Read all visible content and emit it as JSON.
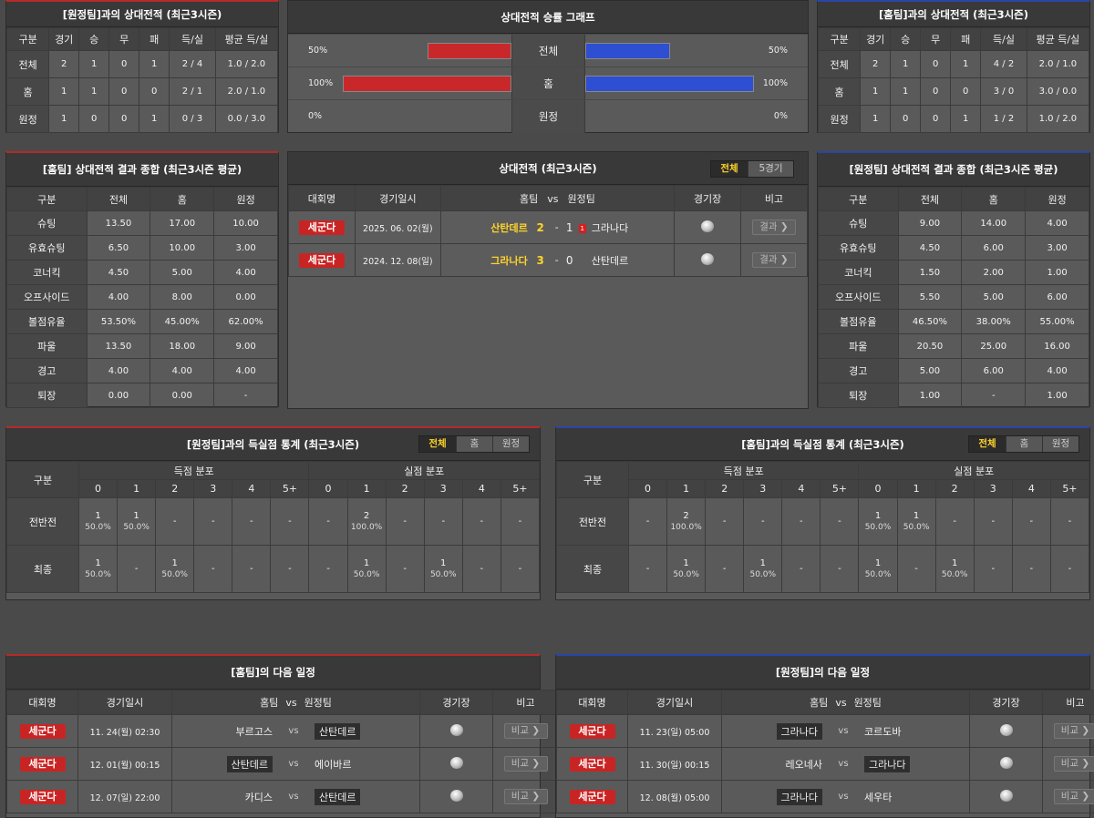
{
  "h2h_left": {
    "title": "[원정팀]과의 상대전적 (최근3시즌)",
    "headers": [
      "구분",
      "경기",
      "승",
      "무",
      "패",
      "득/실",
      "평균 득/실"
    ],
    "rows": [
      [
        "전체",
        "2",
        "1",
        "0",
        "1",
        "2 / 4",
        "1.0 / 2.0"
      ],
      [
        "홈",
        "1",
        "1",
        "0",
        "0",
        "2 / 1",
        "2.0 / 1.0"
      ],
      [
        "원정",
        "1",
        "0",
        "0",
        "1",
        "0 / 3",
        "0.0 / 3.0"
      ]
    ]
  },
  "h2h_right": {
    "title": "[홈팀]과의 상대전적 (최근3시즌)",
    "headers": [
      "구분",
      "경기",
      "승",
      "무",
      "패",
      "득/실",
      "평균 득/실"
    ],
    "rows": [
      [
        "전체",
        "2",
        "1",
        "0",
        "1",
        "4 / 2",
        "2.0 / 1.0"
      ],
      [
        "홈",
        "1",
        "1",
        "0",
        "0",
        "3 / 0",
        "3.0 / 0.0"
      ],
      [
        "원정",
        "1",
        "0",
        "0",
        "1",
        "1 / 2",
        "1.0 / 2.0"
      ]
    ]
  },
  "graph": {
    "title": "상대전적 승률 그래프",
    "rows": [
      {
        "label": "전체",
        "left": "50%",
        "right": "50%",
        "left_value": 50,
        "right_value": 50
      },
      {
        "label": "홈",
        "left": "100%",
        "right": "100%",
        "left_value": 100,
        "right_value": 100
      },
      {
        "label": "원정",
        "left": "0%",
        "right": "0%",
        "left_value": 0,
        "right_value": 0
      }
    ],
    "left_color": "#c8282a",
    "right_color": "#2e4fd1"
  },
  "stats_left": {
    "title": "[홈팀] 상대전적 결과 종합 (최근3시즌 평균)",
    "headers": [
      "구분",
      "전체",
      "홈",
      "원정"
    ],
    "rows": [
      [
        "슈팅",
        "13.50",
        "17.00",
        "10.00"
      ],
      [
        "유효슈팅",
        "6.50",
        "10.00",
        "3.00"
      ],
      [
        "코너킥",
        "4.50",
        "5.00",
        "4.00"
      ],
      [
        "오프사이드",
        "4.00",
        "8.00",
        "0.00"
      ],
      [
        "볼점유율",
        "53.50%",
        "45.00%",
        "62.00%"
      ],
      [
        "파울",
        "13.50",
        "18.00",
        "9.00"
      ],
      [
        "경고",
        "4.00",
        "4.00",
        "4.00"
      ],
      [
        "퇴장",
        "0.00",
        "0.00",
        "-"
      ]
    ]
  },
  "stats_right": {
    "title": "[원정팀] 상대전적 결과 종합 (최근3시즌 평균)",
    "headers": [
      "구분",
      "전체",
      "홈",
      "원정"
    ],
    "rows": [
      [
        "슈팅",
        "9.00",
        "14.00",
        "4.00"
      ],
      [
        "유효슈팅",
        "4.50",
        "6.00",
        "3.00"
      ],
      [
        "코너킥",
        "1.50",
        "2.00",
        "1.00"
      ],
      [
        "오프사이드",
        "5.50",
        "5.00",
        "6.00"
      ],
      [
        "볼점유율",
        "46.50%",
        "38.00%",
        "55.00%"
      ],
      [
        "파울",
        "20.50",
        "25.00",
        "16.00"
      ],
      [
        "경고",
        "5.00",
        "6.00",
        "4.00"
      ],
      [
        "퇴장",
        "1.00",
        "-",
        "1.00"
      ]
    ]
  },
  "matches": {
    "title": "상대전적 (최근3시즌)",
    "tabs": [
      "전체",
      "5경기"
    ],
    "headers": {
      "league": "대회명",
      "date": "경기일시",
      "home": "홈팀",
      "vs": "vs",
      "away": "원정팀",
      "venue": "경기장",
      "note": "비고"
    },
    "rows": [
      {
        "league": "세군다",
        "date": "2025. 06. 02(월)",
        "home": "산탄데르",
        "hs": "2",
        "as": "1",
        "card": "1",
        "away": "그라나다",
        "btn": "결과 ❯"
      },
      {
        "league": "세군다",
        "date": "2024. 12. 08(일)",
        "home": "그라나다",
        "hs": "3",
        "as": "0",
        "card": "",
        "away": "산탄데르",
        "btn": "결과 ❯"
      }
    ]
  },
  "goals_left": {
    "title": "[원정팀]과의 득실점 통계 (최근3시즌)",
    "tabs": [
      "전체",
      "홈",
      "원정"
    ],
    "group_label": "구분",
    "scored": "득점 분포",
    "conceded": "실점 분포",
    "cols": [
      "0",
      "1",
      "2",
      "3",
      "4",
      "5+"
    ],
    "rows": [
      {
        "label": "전반전",
        "cells": [
          [
            "1",
            "50.0%"
          ],
          [
            "1",
            "50.0%"
          ],
          [
            "-",
            ""
          ],
          [
            "-",
            ""
          ],
          [
            "-",
            ""
          ],
          [
            "-",
            ""
          ],
          [
            "-",
            ""
          ],
          [
            "2",
            "100.0%"
          ],
          [
            "-",
            ""
          ],
          [
            "-",
            ""
          ],
          [
            "-",
            ""
          ],
          [
            "-",
            ""
          ]
        ]
      },
      {
        "label": "최종",
        "cells": [
          [
            "1",
            "50.0%"
          ],
          [
            "-",
            ""
          ],
          [
            "1",
            "50.0%"
          ],
          [
            "-",
            ""
          ],
          [
            "-",
            ""
          ],
          [
            "-",
            ""
          ],
          [
            "-",
            ""
          ],
          [
            "1",
            "50.0%"
          ],
          [
            "-",
            ""
          ],
          [
            "1",
            "50.0%"
          ],
          [
            "-",
            ""
          ],
          [
            "-",
            ""
          ]
        ]
      }
    ]
  },
  "goals_right": {
    "title": "[홈팀]과의 득실점 통계 (최근3시즌)",
    "tabs": [
      "전체",
      "홈",
      "원정"
    ],
    "group_label": "구분",
    "scored": "득점 분포",
    "conceded": "실점 분포",
    "cols": [
      "0",
      "1",
      "2",
      "3",
      "4",
      "5+"
    ],
    "rows": [
      {
        "label": "전반전",
        "cells": [
          [
            "-",
            ""
          ],
          [
            "2",
            "100.0%"
          ],
          [
            "-",
            ""
          ],
          [
            "-",
            ""
          ],
          [
            "-",
            ""
          ],
          [
            "-",
            ""
          ],
          [
            "1",
            "50.0%"
          ],
          [
            "1",
            "50.0%"
          ],
          [
            "-",
            ""
          ],
          [
            "-",
            ""
          ],
          [
            "-",
            ""
          ],
          [
            "-",
            ""
          ]
        ]
      },
      {
        "label": "최종",
        "cells": [
          [
            "-",
            ""
          ],
          [
            "1",
            "50.0%"
          ],
          [
            "-",
            ""
          ],
          [
            "1",
            "50.0%"
          ],
          [
            "-",
            ""
          ],
          [
            "-",
            ""
          ],
          [
            "1",
            "50.0%"
          ],
          [
            "-",
            ""
          ],
          [
            "1",
            "50.0%"
          ],
          [
            "-",
            ""
          ],
          [
            "-",
            ""
          ],
          [
            "-",
            ""
          ]
        ]
      }
    ]
  },
  "next_home": {
    "title": "[홈팀]의 다음 일정",
    "headers": {
      "league": "대회명",
      "date": "경기일시",
      "home": "홈팀",
      "vs": "vs",
      "away": "원정팀",
      "venue": "경기장",
      "note": "비고"
    },
    "rows": [
      {
        "league": "세군다",
        "date": "11. 24(월) 02:30",
        "home": "부르고스",
        "away": "산탄데르",
        "hl": "away",
        "btn": "비교 ❯"
      },
      {
        "league": "세군다",
        "date": "12. 01(월) 00:15",
        "home": "산탄데르",
        "away": "에이바르",
        "hl": "home",
        "btn": "비교 ❯"
      },
      {
        "league": "세군다",
        "date": "12. 07(일) 22:00",
        "home": "카디스",
        "away": "산탄데르",
        "hl": "away",
        "btn": "비교 ❯"
      }
    ]
  },
  "next_away": {
    "title": "[원정팀]의 다음 일정",
    "headers": {
      "league": "대회명",
      "date": "경기일시",
      "home": "홈팀",
      "vs": "vs",
      "away": "원정팀",
      "venue": "경기장",
      "note": "비고"
    },
    "rows": [
      {
        "league": "세군다",
        "date": "11. 23(일) 05:00",
        "home": "그라나다",
        "away": "코르도바",
        "hl": "home",
        "btn": "비교 ❯"
      },
      {
        "league": "세군다",
        "date": "11. 30(일) 00:15",
        "home": "레오네사",
        "away": "그라나다",
        "hl": "away",
        "btn": "비교 ❯"
      },
      {
        "league": "세군다",
        "date": "12. 08(월) 05:00",
        "home": "그라나다",
        "away": "세우타",
        "hl": "home",
        "btn": "비교 ❯"
      }
    ]
  }
}
